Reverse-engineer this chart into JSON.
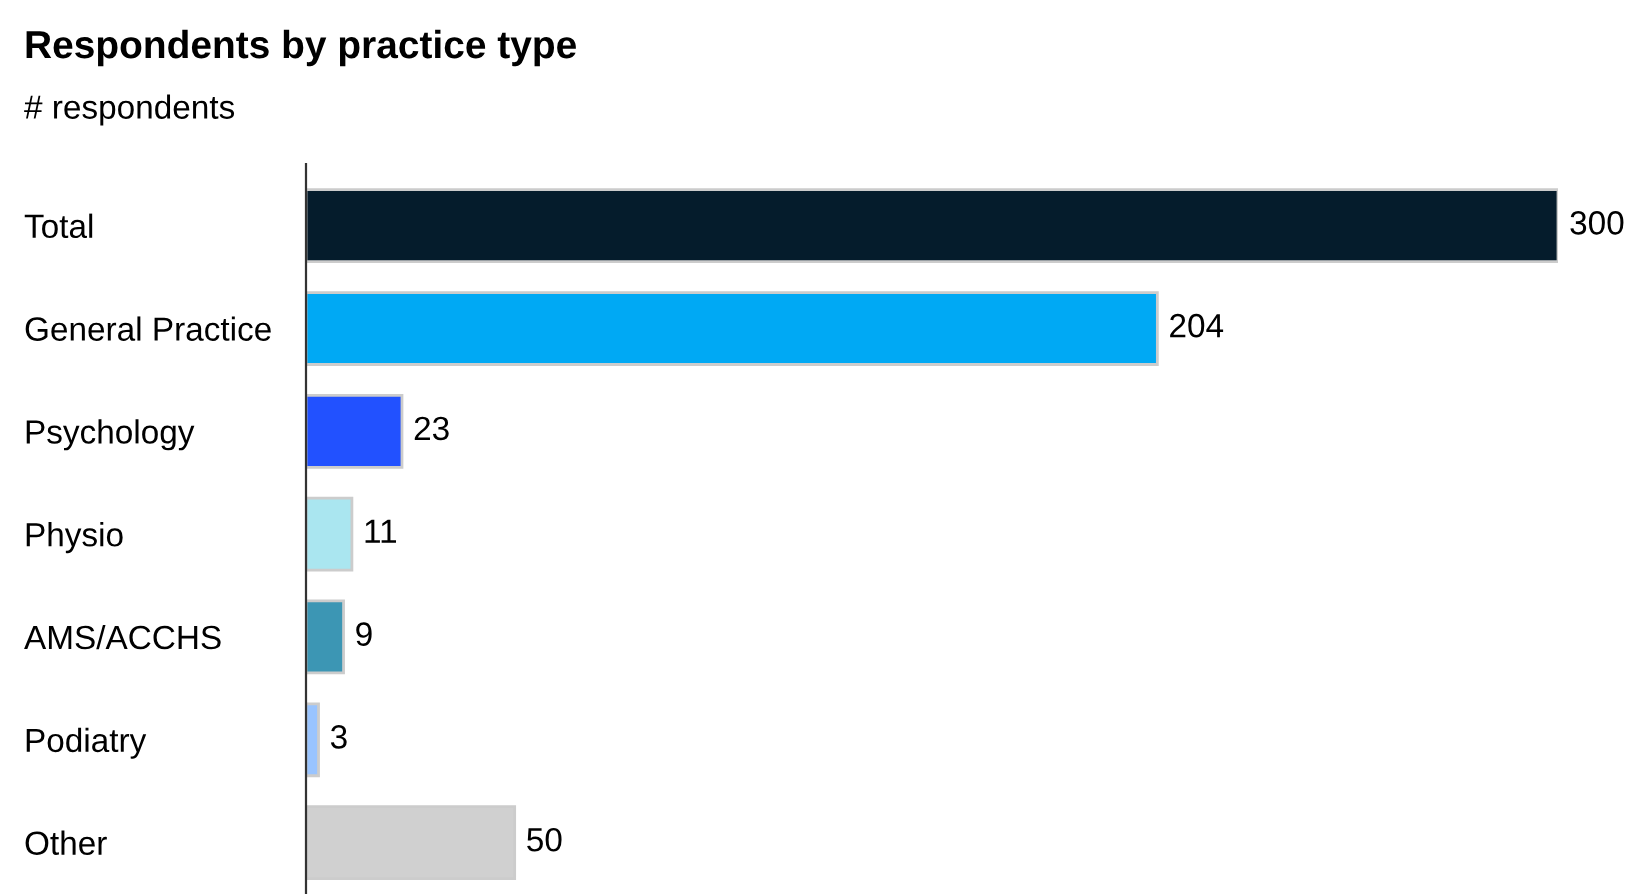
{
  "chart_data": {
    "type": "bar",
    "orientation": "horizontal",
    "title": "Respondents by practice type",
    "subtitle": "# respondents",
    "categories": [
      "Total",
      "General Practice",
      "Psychology",
      "Physio",
      "AMS/ACCHS",
      "Podiatry",
      "Other"
    ],
    "values": [
      300,
      204,
      23,
      11,
      9,
      3,
      50
    ],
    "colors": [
      "#051c2c",
      "#00a9f4",
      "#2251ff",
      "#aae6f0",
      "#3c96b4",
      "#99c4ff",
      "#d0d0d0"
    ],
    "data_labels": true,
    "grid": false,
    "legend": false
  }
}
